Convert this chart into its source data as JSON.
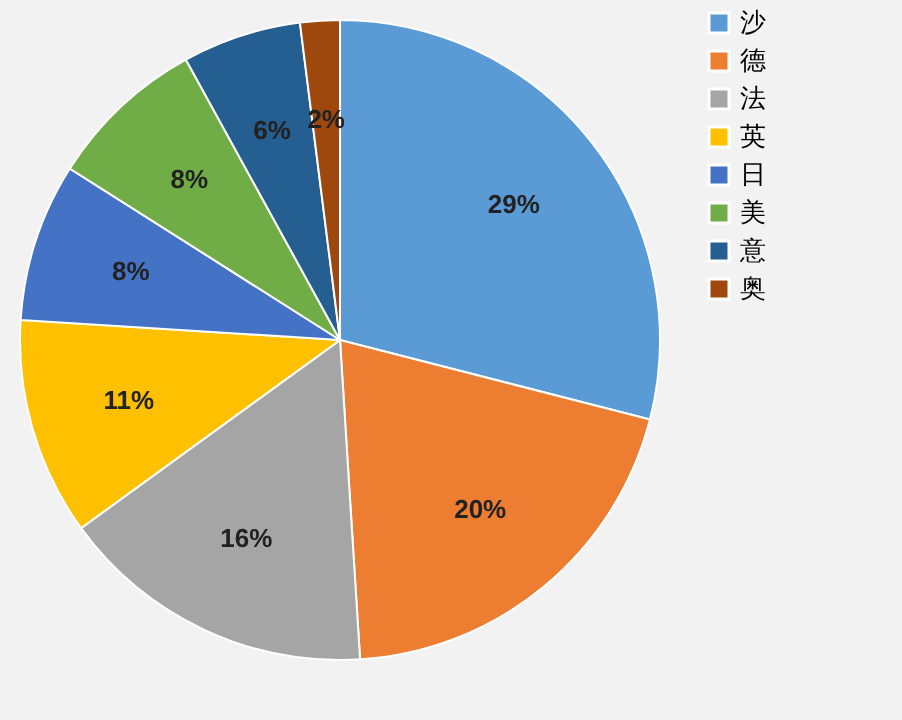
{
  "chart_data": {
    "type": "pie",
    "categories": [
      "沙",
      "德",
      "法",
      "英",
      "日",
      "美",
      "意",
      "奥"
    ],
    "values": [
      29,
      20,
      16,
      11,
      8,
      8,
      6,
      2
    ],
    "value_labels": [
      "29%",
      "20%",
      "16%",
      "11%",
      "8%",
      "8%",
      "6%",
      "2%"
    ],
    "colors": [
      "#5b9bd5",
      "#ed7d31",
      "#a5a5a5",
      "#ffc000",
      "#4472c4",
      "#70ad47",
      "#255e91",
      "#9e480e"
    ],
    "legend": "right"
  }
}
